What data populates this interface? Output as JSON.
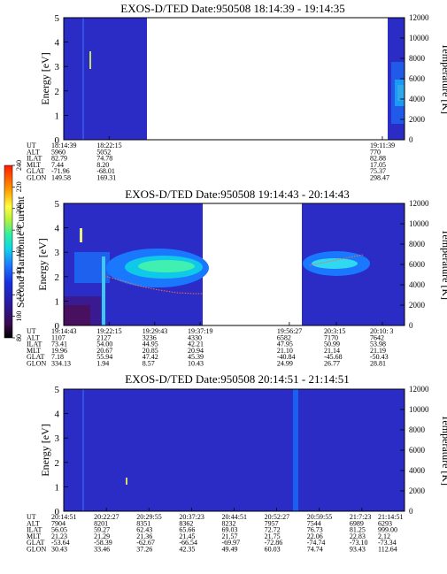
{
  "colorbar": {
    "label": "Second Harmonic Current",
    "ticks": [
      "80",
      "100",
      "120",
      "140",
      "160",
      "180",
      "200",
      "220",
      "240"
    ]
  },
  "chart_data": [
    {
      "type": "heatmap",
      "title": "EXOS-D/TED   Date:950508   18:14:39 - 19:14:35",
      "ylabel": "Energy [eV]",
      "ylabel_right": "Temperature [K]",
      "ylim": [
        0,
        5
      ],
      "yticks": [
        "0",
        "1",
        "2",
        "3",
        "4",
        "5"
      ],
      "ylim_right": [
        0,
        12000
      ],
      "yticks_right": [
        "0",
        "2000",
        "4000",
        "6000",
        "8000",
        "10000",
        "12000"
      ],
      "data_segments": [
        [
          0.0,
          0.27
        ],
        [
          0.95,
          1.0
        ]
      ],
      "ephemeris": {
        "rows": [
          "UT",
          "ALT",
          "ILAT",
          "MLT",
          "GLAT",
          "GLON"
        ],
        "columns": [
          {
            "pos": 0.0,
            "values": [
              "18:14:39",
              "5960",
              "82.79",
              "7.44",
              "-71.96",
              "149.58"
            ]
          },
          {
            "pos": 0.133,
            "values": [
              "18:22:15",
              "5052",
              "74.78",
              "8.20",
              "-68.01",
              "169.31"
            ]
          },
          {
            "pos": 0.935,
            "values": [
              "19:11:39",
              "770",
              "82.88",
              "17.05",
              "75.37",
              "298.47"
            ]
          }
        ]
      }
    },
    {
      "type": "heatmap",
      "title": "EXOS-D/TED   Date:950508   19:14:43 - 20:14:43",
      "ylabel": "Energy [eV]",
      "ylabel_right": "Temperature [K]",
      "ylim": [
        0,
        5
      ],
      "yticks": [
        "0",
        "1",
        "2",
        "3",
        "4",
        "5"
      ],
      "ylim_right": [
        0,
        12000
      ],
      "yticks_right": [
        "0",
        "2000",
        "4000",
        "6000",
        "8000",
        "10000",
        "12000"
      ],
      "data_segments": [
        [
          0.0,
          0.4
        ],
        [
          0.66,
          1.0
        ]
      ],
      "ephemeris": {
        "rows": [
          "UT",
          "ALT",
          "ILAT",
          "MLT",
          "GLAT",
          "GLON"
        ],
        "columns": [
          {
            "pos": 0.0,
            "values": [
              "19:14:43",
              "1107",
              "73.41",
              "19.96",
              "7.18",
              "334.13"
            ]
          },
          {
            "pos": 0.133,
            "values": [
              "19:22:15",
              "2127",
              "54.00",
              "20.67",
              "55.94",
              "1.94"
            ]
          },
          {
            "pos": 0.267,
            "values": [
              "19:29:43",
              "3236",
              "44.95",
              "20.85",
              "47.42",
              "8.57"
            ]
          },
          {
            "pos": 0.4,
            "values": [
              "19:37:19",
              "4330",
              "42.21",
              "20.94",
              "45.39",
              "10.43"
            ]
          },
          {
            "pos": 0.662,
            "values": [
              "19:56:27",
              "6582",
              "47.95",
              "21.10",
              "-40.84",
              "24.99"
            ]
          },
          {
            "pos": 0.8,
            "values": [
              "20:3:15",
              "7170",
              "50.99",
              "21.14",
              "-45.68",
              "26.77"
            ]
          },
          {
            "pos": 0.935,
            "values": [
              "20:10: 3",
              "7642",
              "53.98",
              "21.19",
              "-50.43",
              "28.81"
            ]
          }
        ]
      }
    },
    {
      "type": "heatmap",
      "title": "EXOS-D/TED   Date:950508   20:14:51 - 21:14:51",
      "ylabel": "Energy [eV]",
      "ylabel_right": "Temperature [K]",
      "ylim": [
        0,
        5
      ],
      "yticks": [
        "0",
        "1",
        "2",
        "3",
        "4",
        "5"
      ],
      "ylim_right": [
        0,
        12000
      ],
      "yticks_right": [
        "0",
        "2000",
        "4000",
        "6000",
        "8000",
        "10000",
        "12000"
      ],
      "data_segments": [
        [
          0.0,
          1.0
        ]
      ],
      "ephemeris": {
        "rows": [
          "UT",
          "ALT",
          "ILAT",
          "MLT",
          "GLAT",
          "GLON"
        ],
        "columns": [
          {
            "pos": 0.0,
            "values": [
              "20:14:51",
              "7904",
              "56.05",
              "21.23",
              "-53.64",
              "30.43"
            ]
          },
          {
            "pos": 0.125,
            "values": [
              "20:22:27",
              "8201",
              "59.27",
              "21.29",
              "-58.39",
              "33.46"
            ]
          },
          {
            "pos": 0.25,
            "values": [
              "20:29:55",
              "8351",
              "62.43",
              "21.36",
              "-62.67",
              "37.26"
            ]
          },
          {
            "pos": 0.375,
            "values": [
              "20:37:23",
              "8362",
              "65.66",
              "21.45",
              "-66.54",
              "42.35"
            ]
          },
          {
            "pos": 0.5,
            "values": [
              "20:44:51",
              "8232",
              "69.03",
              "21.57",
              "-69.97",
              "49.49"
            ]
          },
          {
            "pos": 0.625,
            "values": [
              "20:52:27",
              "7957",
              "72.72",
              "21.75",
              "-72.86",
              "60.03"
            ]
          },
          {
            "pos": 0.75,
            "values": [
              "20:59:55",
              "7544",
              "76.73",
              "22.06",
              "-74.74",
              "74.74"
            ]
          },
          {
            "pos": 0.875,
            "values": [
              "21:7:23",
              "6989",
              "81.25",
              "22.83",
              "-73.10",
              "93.43"
            ]
          },
          {
            "pos": 1.0,
            "values": [
              "21:14:51",
              "6293",
              "999.00",
              "2.12",
              "-73.34",
              "112.64"
            ]
          }
        ]
      }
    }
  ]
}
